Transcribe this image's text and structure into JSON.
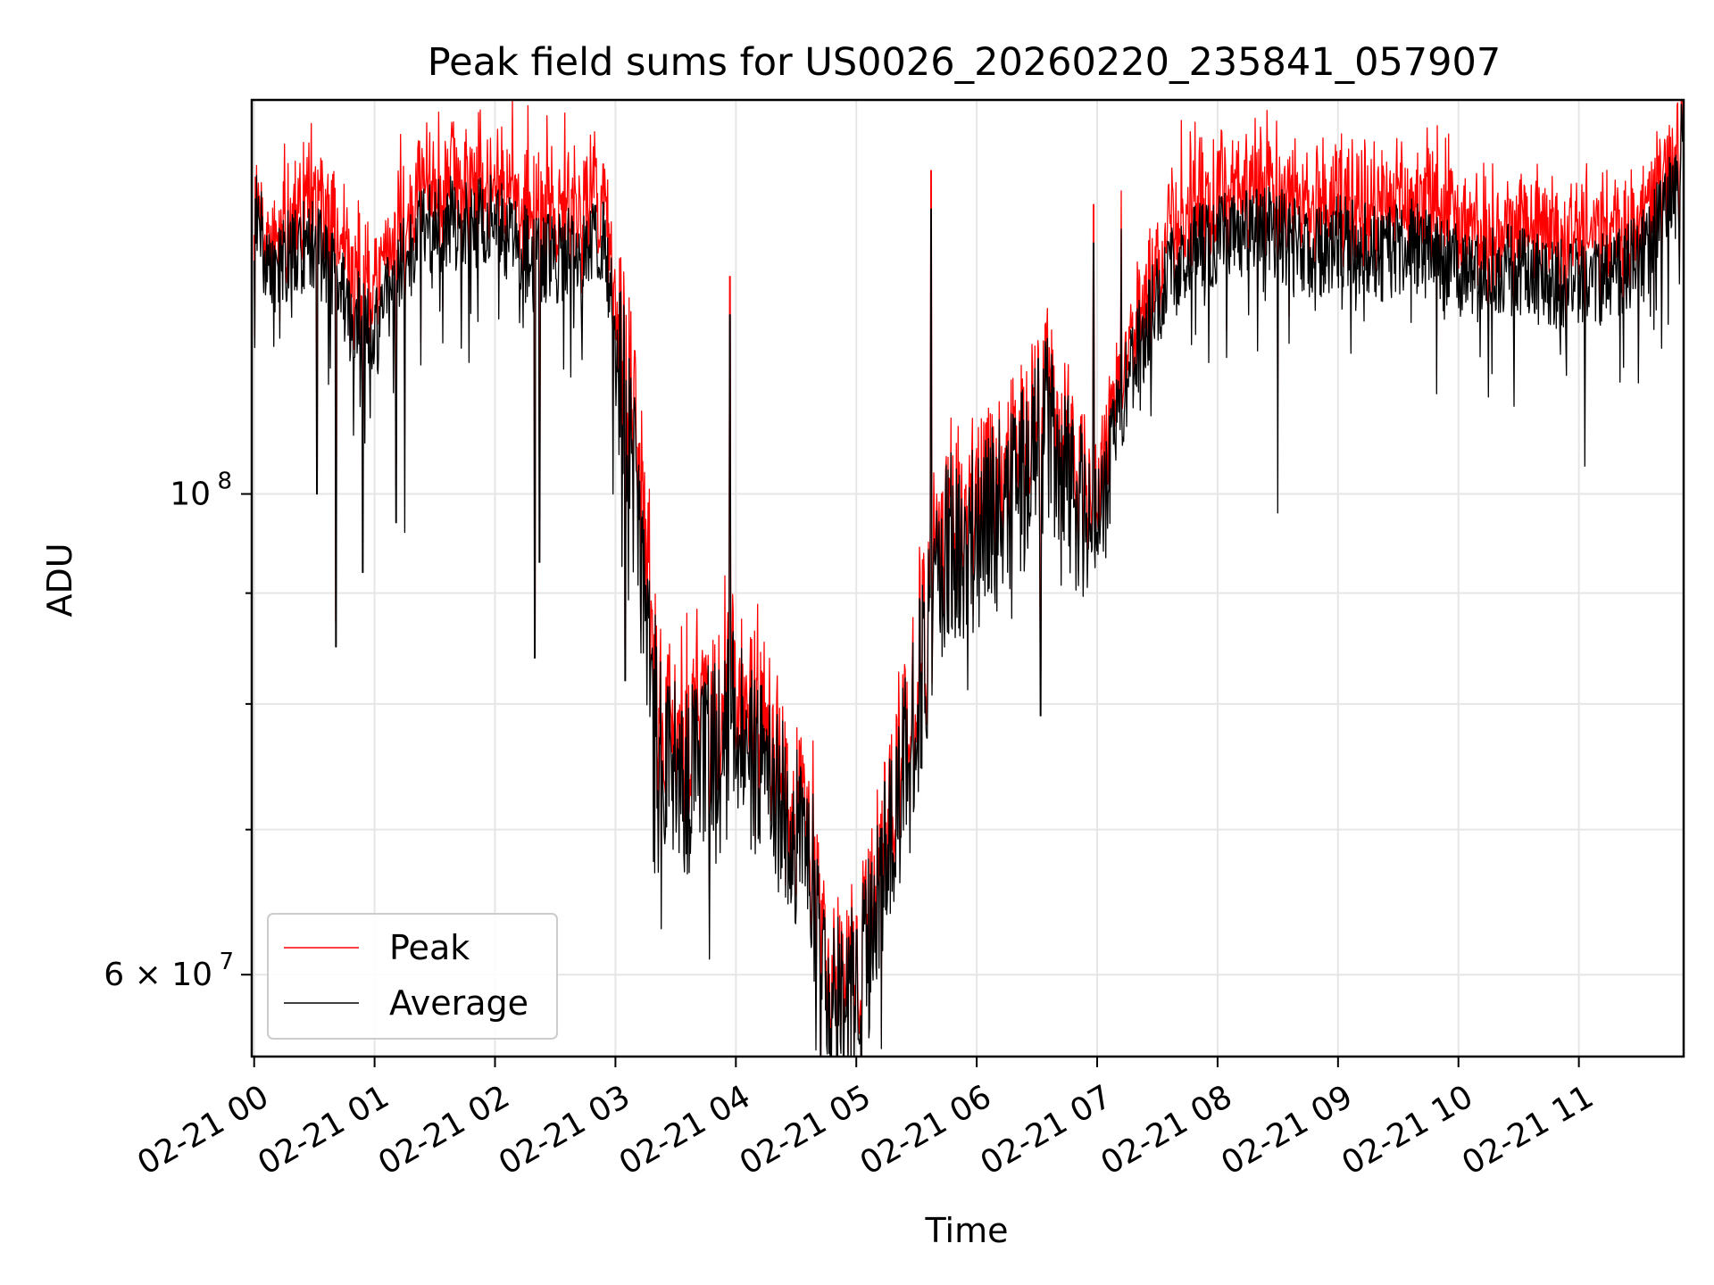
{
  "chart_data": {
    "type": "line",
    "title": "Peak field sums for US0026_20260220_235841_057907",
    "xlabel": "Time",
    "ylabel": "ADU",
    "yscale": "log",
    "grid": true,
    "legend_position": "lower-left",
    "x_ticks": [
      "02-21 00",
      "02-21 01",
      "02-21 02",
      "02-21 03",
      "02-21 04",
      "02-21 05",
      "02-21 06",
      "02-21 07",
      "02-21 08",
      "02-21 09",
      "02-21 10",
      "02-21 11"
    ],
    "x_range_hours": [
      -0.02,
      11.87
    ],
    "y_range": [
      55000000,
      152000000
    ],
    "y_tick_labels": [
      {
        "value": 100000000,
        "base": "10",
        "exp": "8"
      },
      {
        "value": 60000000,
        "base": "6 × 10",
        "exp": "7"
      }
    ],
    "y_minor_ticks": [
      70000000,
      80000000,
      90000000
    ],
    "series": [
      {
        "name": "Peak",
        "color": "#ff0000"
      },
      {
        "name": "Average",
        "color": "#000000"
      }
    ],
    "trend": {
      "hours": [
        0.0,
        0.05,
        0.1,
        0.3,
        0.5,
        0.7,
        0.9,
        1.0,
        1.2,
        1.4,
        1.6,
        1.8,
        2.0,
        2.2,
        2.4,
        2.6,
        2.8,
        2.9,
        3.0,
        3.1,
        3.2,
        3.3,
        3.4,
        3.6,
        3.8,
        3.95,
        4.1,
        4.3,
        4.5,
        4.65,
        4.75,
        4.85,
        4.95,
        5.02,
        5.1,
        5.2,
        5.3,
        5.4,
        5.5,
        5.6,
        5.7,
        5.8,
        5.9,
        6.0,
        6.2,
        6.4,
        6.6,
        6.8,
        7.0,
        7.2,
        7.4,
        7.6,
        7.8,
        8.0,
        8.2,
        8.4,
        8.6,
        8.8,
        9.0,
        9.2,
        9.4,
        9.6,
        9.8,
        10.0,
        10.2,
        10.4,
        10.6,
        10.8,
        11.0,
        11.2,
        11.4,
        11.6,
        11.7,
        11.8,
        11.83,
        11.86
      ],
      "average": [
        133000000,
        135000000,
        127000000,
        129000000,
        131000000,
        124000000,
        120000000,
        118000000,
        128000000,
        132000000,
        134000000,
        133000000,
        134000000,
        130000000,
        128000000,
        129000000,
        130000000,
        131000000,
        118000000,
        108000000,
        96000000,
        82000000,
        76000000,
        74000000,
        77000000,
        80000000,
        76000000,
        73000000,
        70000000,
        66000000,
        60000000,
        58000000,
        59000000,
        60000000,
        62000000,
        66000000,
        70000000,
        75000000,
        80000000,
        86000000,
        93000000,
        96000000,
        93000000,
        97000000,
        99000000,
        102000000,
        108000000,
        100000000,
        98000000,
        110000000,
        120000000,
        126000000,
        130000000,
        131000000,
        132000000,
        133000000,
        131000000,
        129000000,
        131000000,
        130000000,
        129000000,
        131000000,
        128000000,
        127000000,
        126000000,
        127000000,
        126000000,
        125000000,
        125000000,
        126000000,
        127000000,
        130000000,
        136000000,
        138000000,
        138000000,
        150000000
      ],
      "peak_offset": [
        3000000,
        3000000,
        4000000,
        5000000,
        7000000,
        7000000,
        7000000,
        7000000,
        7000000,
        7000000,
        7000000,
        7000000,
        7000000,
        7000000,
        7000000,
        7000000,
        8000000,
        8000000,
        6000000,
        6000000,
        5000000,
        4000000,
        3000000,
        3000000,
        3000000,
        3000000,
        3000000,
        3000000,
        2000000,
        2000000,
        1500000,
        1500000,
        1500000,
        1500000,
        1500000,
        2000000,
        2000000,
        2000000,
        2000000,
        2000000,
        3000000,
        3000000,
        3000000,
        3000000,
        3000000,
        3000000,
        3000000,
        3000000,
        3000000,
        4000000,
        5000000,
        6000000,
        7000000,
        7000000,
        7000000,
        7000000,
        7000000,
        7000000,
        7000000,
        7000000,
        7000000,
        7000000,
        7000000,
        7000000,
        7000000,
        7000000,
        7000000,
        7000000,
        7000000,
        7000000,
        6000000,
        6000000,
        5000000,
        4000000,
        3000000,
        2000000
      ]
    },
    "notable_dips": [
      {
        "hour": 0.52,
        "value": 100000000
      },
      {
        "hour": 0.68,
        "value": 85000000
      },
      {
        "hour": 0.9,
        "value": 92000000
      },
      {
        "hour": 1.18,
        "value": 97000000
      },
      {
        "hour": 1.25,
        "value": 96000000
      },
      {
        "hour": 2.33,
        "value": 84000000
      },
      {
        "hour": 2.37,
        "value": 93000000
      },
      {
        "hour": 2.98,
        "value": 100000000
      },
      {
        "hour": 3.08,
        "value": 82000000
      },
      {
        "hour": 3.38,
        "value": 63000000
      },
      {
        "hour": 3.78,
        "value": 61000000
      },
      {
        "hour": 5.02,
        "value": 56000000
      },
      {
        "hour": 6.53,
        "value": 79000000
      },
      {
        "hour": 8.5,
        "value": 98000000
      },
      {
        "hour": 11.05,
        "value": 103000000
      }
    ],
    "notable_peaks": [
      {
        "hour": 2.9,
        "value": 142000000
      },
      {
        "hour": 3.95,
        "value": 126000000
      },
      {
        "hour": 5.62,
        "value": 141000000
      },
      {
        "hour": 6.97,
        "value": 136000000
      },
      {
        "hour": 7.2,
        "value": 138000000
      },
      {
        "hour": 11.88,
        "value": 152000000
      }
    ]
  }
}
